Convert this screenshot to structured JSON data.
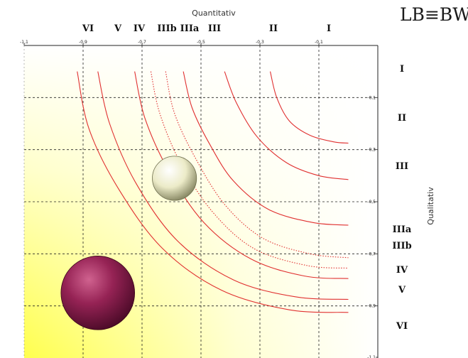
{
  "logo": {
    "text": "LB≡BW"
  },
  "chart_data": {
    "type": "line",
    "xlabel": "Quantitativ",
    "ylabel": "Qualitativ",
    "xlim": [
      -1.1,
      0.1
    ],
    "ylim": [
      -1.1,
      0.1
    ],
    "x_ticks": [
      "-1,1",
      "-0,9",
      "-0,7",
      "-0,5",
      "-0,3",
      "-0,1"
    ],
    "y_ticks": [
      "-0,1",
      "-0,3",
      "-0,5",
      "-0,7",
      "-0,9",
      "-1,1"
    ],
    "grid": true,
    "x_categories": [
      "VI",
      "V",
      "IV",
      "IIIb",
      "IIIa",
      "III",
      "II",
      "I"
    ],
    "y_categories": [
      "I",
      "II",
      "III",
      "IIIa",
      "IIIb",
      "IV",
      "V",
      "VI"
    ],
    "colors": {
      "curve": "#e03030",
      "grid": "#222222",
      "background_fill": "#ffff44",
      "bubble_small": "#ecebc8",
      "bubble_large": "#962355"
    },
    "series": [
      {
        "label": "I",
        "style": "solid",
        "points": [
          [
            -0.265,
            0.0
          ],
          [
            -0.243,
            -0.1
          ],
          [
            -0.2,
            -0.19
          ],
          [
            -0.13,
            -0.245
          ],
          [
            -0.05,
            -0.27
          ],
          [
            0.0,
            -0.275
          ]
        ]
      },
      {
        "label": "II",
        "style": "solid",
        "points": [
          [
            -0.42,
            0.0
          ],
          [
            -0.38,
            -0.12
          ],
          [
            -0.31,
            -0.25
          ],
          [
            -0.21,
            -0.35
          ],
          [
            -0.1,
            -0.4
          ],
          [
            0.0,
            -0.415
          ]
        ]
      },
      {
        "label": "III",
        "style": "solid",
        "points": [
          [
            -0.56,
            0.0
          ],
          [
            -0.53,
            -0.14
          ],
          [
            -0.47,
            -0.28
          ],
          [
            -0.39,
            -0.42
          ],
          [
            -0.27,
            -0.53
          ],
          [
            -0.12,
            -0.58
          ],
          [
            0.0,
            -0.59
          ]
        ]
      },
      {
        "label": "IIIa",
        "style": "dotted",
        "points": [
          [
            -0.62,
            0.0
          ],
          [
            -0.59,
            -0.16
          ],
          [
            -0.52,
            -0.33
          ],
          [
            -0.42,
            -0.51
          ],
          [
            -0.29,
            -0.64
          ],
          [
            -0.13,
            -0.7
          ],
          [
            0.0,
            -0.715
          ]
        ]
      },
      {
        "label": "IIIb",
        "style": "dotted",
        "points": [
          [
            -0.67,
            0.0
          ],
          [
            -0.64,
            -0.16
          ],
          [
            -0.57,
            -0.35
          ],
          [
            -0.46,
            -0.54
          ],
          [
            -0.32,
            -0.68
          ],
          [
            -0.14,
            -0.745
          ],
          [
            0.0,
            -0.755
          ]
        ]
      },
      {
        "label": "IV",
        "style": "solid",
        "points": [
          [
            -0.725,
            0.0
          ],
          [
            -0.69,
            -0.18
          ],
          [
            -0.61,
            -0.38
          ],
          [
            -0.49,
            -0.58
          ],
          [
            -0.33,
            -0.72
          ],
          [
            -0.15,
            -0.785
          ],
          [
            0.0,
            -0.795
          ]
        ]
      },
      {
        "label": "V",
        "style": "solid",
        "points": [
          [
            -0.85,
            0.0
          ],
          [
            -0.81,
            -0.2
          ],
          [
            -0.72,
            -0.43
          ],
          [
            -0.58,
            -0.65
          ],
          [
            -0.39,
            -0.8
          ],
          [
            -0.18,
            -0.865
          ],
          [
            0.0,
            -0.875
          ]
        ]
      },
      {
        "label": "VI",
        "style": "solid",
        "points": [
          [
            -0.92,
            0.0
          ],
          [
            -0.88,
            -0.22
          ],
          [
            -0.78,
            -0.45
          ],
          [
            -0.63,
            -0.68
          ],
          [
            -0.43,
            -0.84
          ],
          [
            -0.2,
            -0.915
          ],
          [
            0.0,
            -0.925
          ]
        ]
      }
    ],
    "bubbles": [
      {
        "name": "small",
        "x": -0.59,
        "y": -0.41,
        "r": 0.075
      },
      {
        "name": "large",
        "x": -0.85,
        "y": -0.85,
        "r": 0.125
      }
    ]
  }
}
